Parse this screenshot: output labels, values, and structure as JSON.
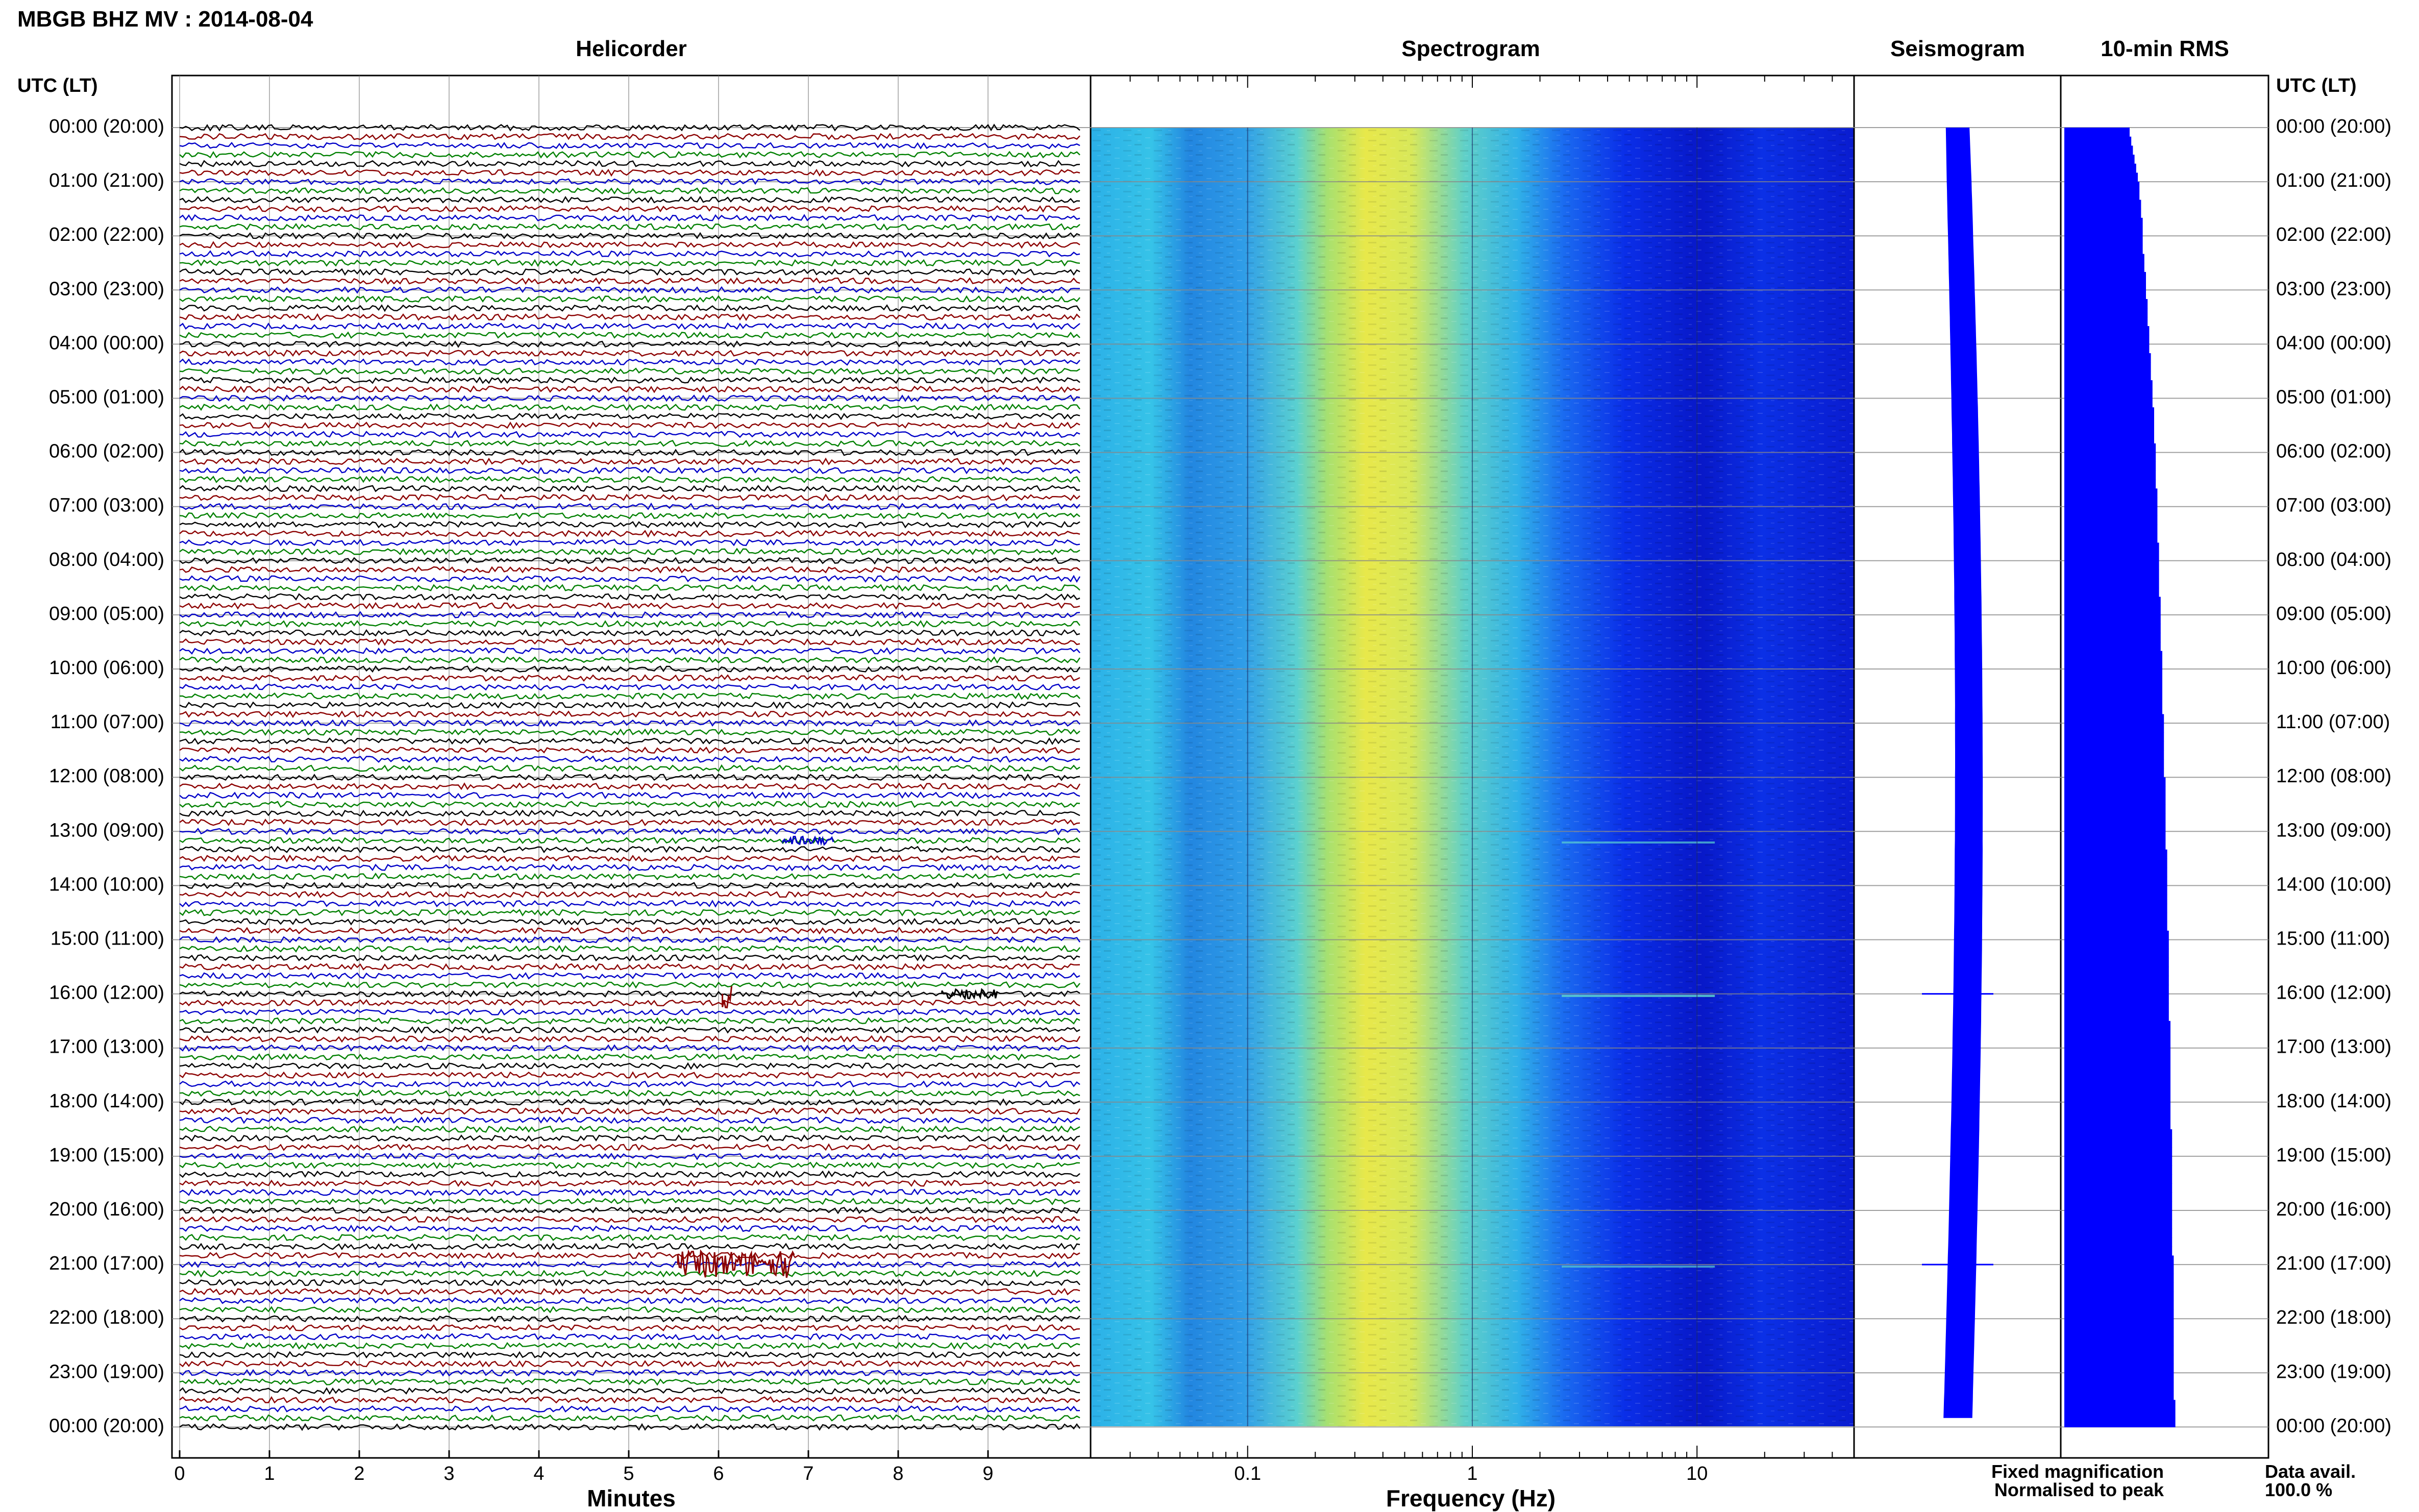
{
  "header": {
    "title": "MBGB BHZ MV : 2014-08-04"
  },
  "panels": {
    "helicorder": "Helicorder",
    "spectrogram": "Spectrogram",
    "seismogram": "Seismogram",
    "rms": "10-min RMS"
  },
  "axis": {
    "time_label_left": "UTC (LT)",
    "time_label_right": "UTC (LT)",
    "minutes_label": "Minutes",
    "frequency_label": "Frequency (Hz)"
  },
  "footer": {
    "legend_fixed": "Fixed magnification",
    "legend_normalised": "Normalised to peak",
    "data_avail_label": "Data avail.",
    "data_avail_value": "100.0 %"
  },
  "colors": {
    "trace_cycle": [
      "#000000",
      "#8b0000",
      "#0000c8",
      "#008000"
    ],
    "seismogram": "#0000ff",
    "rms": "#0000ff",
    "legend_fixed": "#0000ff",
    "legend_normalised": "#ff0000"
  },
  "chart_data": {
    "type": "heatmap",
    "time_ticks": [
      "00:00 (20:00)",
      "01:00 (21:00)",
      "02:00 (22:00)",
      "03:00 (23:00)",
      "04:00 (00:00)",
      "05:00 (01:00)",
      "06:00 (02:00)",
      "07:00 (03:00)",
      "08:00 (04:00)",
      "09:00 (05:00)",
      "10:00 (06:00)",
      "11:00 (07:00)",
      "12:00 (08:00)",
      "13:00 (09:00)",
      "14:00 (10:00)",
      "15:00 (11:00)",
      "16:00 (12:00)",
      "17:00 (13:00)",
      "18:00 (14:00)",
      "19:00 (15:00)",
      "20:00 (16:00)",
      "21:00 (17:00)",
      "22:00 (18:00)",
      "23:00 (19:00)",
      "00:00 (20:00)"
    ],
    "minute_ticks": [
      "0",
      "1",
      "2",
      "3",
      "4",
      "5",
      "6",
      "7",
      "8",
      "9"
    ],
    "frequency_ticks": [
      "0.1",
      "1",
      "10"
    ],
    "frequency_range_hz": [
      0.02,
      50
    ],
    "spectrogram_peak_hz": 0.3,
    "helicorder_rows_per_hour": 6,
    "events": [
      {
        "time": "13:10",
        "minute": 7.0,
        "note": "small arrival"
      },
      {
        "time": "16:00",
        "minute": 6.1,
        "note": "spike"
      },
      {
        "time": "16:00",
        "minute": 8.8,
        "note": "short burst"
      },
      {
        "time": "21:00",
        "minute": 6.2,
        "note": "earthquake"
      }
    ],
    "rms_relative": [
      0.4,
      0.41,
      0.42,
      0.43,
      0.44,
      0.45,
      0.46,
      0.46,
      0.47,
      0.47,
      0.48,
      0.48,
      0.48,
      0.48,
      0.49,
      0.49,
      0.5,
      0.5,
      0.5,
      0.51,
      0.51,
      0.51,
      0.52,
      0.52,
      0.52,
      0.53,
      0.53,
      0.53,
      0.54,
      0.54,
      0.54,
      0.55,
      0.55,
      0.55,
      0.55,
      0.56,
      0.56,
      0.56,
      0.56,
      0.56,
      0.57,
      0.57,
      0.57,
      0.57,
      0.57,
      0.57,
      0.58,
      0.58,
      0.58,
      0.58,
      0.58,
      0.58,
      0.59,
      0.59,
      0.59,
      0.59,
      0.59,
      0.59,
      0.6,
      0.6,
      0.6,
      0.6,
      0.6,
      0.6,
      0.6,
      0.61,
      0.61,
      0.61,
      0.61,
      0.61,
      0.61,
      0.61,
      0.62,
      0.62,
      0.62,
      0.62,
      0.62,
      0.62,
      0.62,
      0.62,
      0.63,
      0.63,
      0.63,
      0.63,
      0.63,
      0.63,
      0.63,
      0.63,
      0.63,
      0.64,
      0.64,
      0.64,
      0.64,
      0.64,
      0.64,
      0.64,
      0.64,
      0.64,
      0.64,
      0.65,
      0.65,
      0.65,
      0.65,
      0.65,
      0.65,
      0.65,
      0.65,
      0.65,
      0.65,
      0.65,
      0.65,
      0.66,
      0.66,
      0.66,
      0.66,
      0.66,
      0.66,
      0.66,
      0.66,
      0.66,
      0.66,
      0.66,
      0.66,
      0.66,
      0.66,
      0.67,
      0.67,
      0.67,
      0.67,
      0.67,
      0.67,
      0.67,
      0.67,
      0.67,
      0.67,
      0.67,
      0.67,
      0.67,
      0.67,
      0.67,
      0.67,
      0.68,
      0.68,
      0.68
    ]
  }
}
